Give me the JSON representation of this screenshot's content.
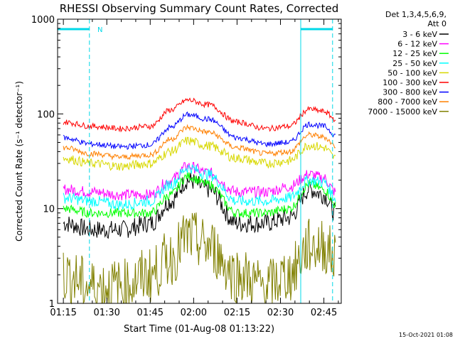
{
  "chart_data": {
    "type": "line",
    "title": "RHESSI Observing Summary Count Rates, Corrected",
    "xlabel": "Start Time (01-Aug-08 01:13:22)",
    "ylabel": "Corrected Count Rate (s⁻¹ detector⁻¹)",
    "y_scale": "log",
    "ylim": [
      1,
      1000
    ],
    "xlim": [
      "01:13",
      "02:51"
    ],
    "x_ticks": [
      "01:15",
      "01:30",
      "01:45",
      "02:00",
      "02:15",
      "02:30",
      "02:45"
    ],
    "y_ticks": [
      "1",
      "10",
      "100",
      "1000"
    ],
    "legend": {
      "header": [
        "Det 1,3,4,5,6,9,",
        "Att 0"
      ],
      "placement": "right"
    },
    "annotations": {
      "timestamp": "15-Oct-2021 01:08",
      "night_marker": "N"
    },
    "x": [
      "01:15",
      "01:25",
      "01:35",
      "01:45",
      "01:52",
      "01:58",
      "02:05",
      "02:15",
      "02:25",
      "02:33",
      "02:40",
      "02:45",
      "02:49"
    ],
    "series": [
      {
        "name": "3 - 6 keV",
        "color": "#000000",
        "values": [
          7,
          6,
          6,
          7,
          12,
          20,
          16,
          7,
          7,
          8,
          16,
          14,
          9
        ]
      },
      {
        "name": "6 - 12 keV",
        "color": "#ff00ff",
        "values": [
          16,
          15,
          14,
          14,
          20,
          28,
          24,
          15,
          15,
          17,
          23,
          21,
          15
        ]
      },
      {
        "name": "12 - 25 keV",
        "color": "#00ff00",
        "values": [
          10,
          9,
          9,
          9,
          14,
          22,
          18,
          9,
          9,
          10,
          18,
          16,
          11
        ]
      },
      {
        "name": "25 - 50 keV",
        "color": "#00ffff",
        "values": [
          13,
          12,
          11,
          12,
          18,
          27,
          23,
          12,
          12,
          13,
          20,
          19,
          13
        ]
      },
      {
        "name": "50 - 100 keV",
        "color": "#d8d800",
        "values": [
          34,
          30,
          28,
          30,
          40,
          52,
          46,
          34,
          30,
          32,
          47,
          44,
          34
        ]
      },
      {
        "name": "100 - 300 keV",
        "color": "#ff0000",
        "values": [
          82,
          74,
          70,
          74,
          110,
          140,
          125,
          82,
          70,
          74,
          112,
          106,
          88
        ]
      },
      {
        "name": "300 - 800 keV",
        "color": "#0000ff",
        "values": [
          56,
          48,
          45,
          47,
          72,
          98,
          88,
          56,
          48,
          50,
          78,
          74,
          60
        ]
      },
      {
        "name": "800 - 7000 keV",
        "color": "#ff8000",
        "values": [
          44,
          38,
          35,
          37,
          54,
          72,
          64,
          44,
          38,
          40,
          60,
          57,
          46
        ]
      },
      {
        "name": "7000 - 15000 keV",
        "color": "#808000",
        "values": [
          2,
          1.5,
          1.5,
          2,
          3,
          5,
          4,
          2,
          1.5,
          2,
          4,
          4,
          3
        ]
      }
    ],
    "night_intervals": [
      [
        "01:13",
        "01:24"
      ],
      [
        "02:37",
        "02:48"
      ]
    ]
  }
}
